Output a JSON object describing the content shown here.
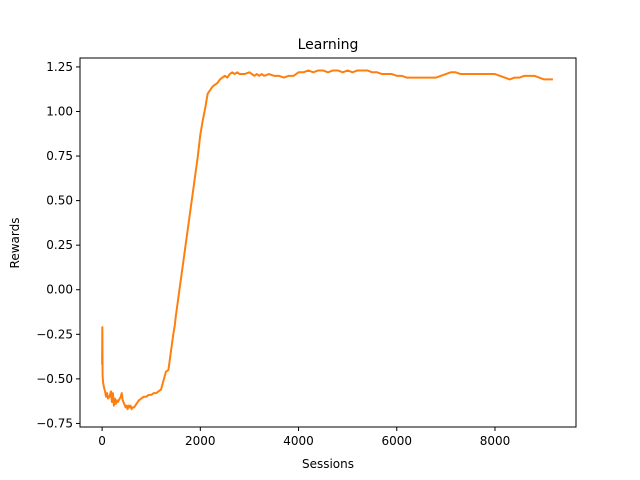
{
  "chart_data": {
    "type": "line",
    "title": "Learning",
    "xlabel": "Sessions",
    "ylabel": "Rewards",
    "xlim": [
      -450,
      9650
    ],
    "ylim": [
      -0.77,
      1.3
    ],
    "grid": false,
    "legend": "none",
    "x_ticks": [
      0,
      2000,
      4000,
      6000,
      8000
    ],
    "x_tick_labels": [
      "0",
      "2000",
      "4000",
      "6000",
      "8000"
    ],
    "y_ticks": [
      -0.75,
      -0.5,
      -0.25,
      0.0,
      0.25,
      0.5,
      0.75,
      1.0,
      1.25
    ],
    "y_tick_labels": [
      "−0.75",
      "−0.50",
      "−0.25",
      "0.00",
      "0.25",
      "0.50",
      "0.75",
      "1.00",
      "1.25"
    ],
    "colors": {
      "line": "#ff7f0e",
      "axes": "#000000"
    },
    "series": [
      {
        "x": [
          0,
          5,
          10,
          20,
          40,
          60,
          80,
          100,
          120,
          150,
          180,
          200,
          220,
          240,
          260,
          280,
          300,
          320,
          340,
          360,
          380,
          400,
          420,
          450,
          480,
          500,
          520,
          540,
          560,
          580,
          600,
          620,
          650,
          700,
          750,
          800,
          850,
          900,
          950,
          1000,
          1050,
          1100,
          1150,
          1200,
          1250,
          1300,
          1350,
          1400,
          1450,
          1480,
          1500,
          1550,
          1600,
          1650,
          1700,
          1750,
          1800,
          1850,
          1900,
          1950,
          2000,
          2050,
          2100,
          2150,
          2200,
          2250,
          2300,
          2350,
          2400,
          2450,
          2500,
          2550,
          2600,
          2650,
          2700,
          2750,
          2800,
          2900,
          3000,
          3100,
          3150,
          3200,
          3250,
          3300,
          3400,
          3500,
          3600,
          3700,
          3800,
          3900,
          4000,
          4100,
          4200,
          4300,
          4400,
          4500,
          4600,
          4700,
          4800,
          4900,
          5000,
          5100,
          5200,
          5300,
          5400,
          5500,
          5600,
          5700,
          5800,
          5900,
          6000,
          6100,
          6200,
          6300,
          6400,
          6500,
          6600,
          6700,
          6800,
          6900,
          7000,
          7100,
          7200,
          7300,
          7400,
          7500,
          7600,
          7700,
          7800,
          7900,
          8000,
          8100,
          8200,
          8300,
          8400,
          8500,
          8600,
          8700,
          8800,
          8900,
          9000,
          9100,
          9180
        ],
        "y": [
          -0.42,
          -0.21,
          -0.48,
          -0.52,
          -0.55,
          -0.57,
          -0.6,
          -0.58,
          -0.61,
          -0.6,
          -0.57,
          -0.63,
          -0.58,
          -0.65,
          -0.61,
          -0.64,
          -0.62,
          -0.63,
          -0.62,
          -0.61,
          -0.6,
          -0.58,
          -0.62,
          -0.64,
          -0.66,
          -0.65,
          -0.67,
          -0.65,
          -0.66,
          -0.65,
          -0.67,
          -0.66,
          -0.66,
          -0.64,
          -0.62,
          -0.61,
          -0.6,
          -0.6,
          -0.59,
          -0.59,
          -0.58,
          -0.58,
          -0.57,
          -0.56,
          -0.51,
          -0.46,
          -0.45,
          -0.35,
          -0.25,
          -0.2,
          -0.15,
          -0.05,
          0.05,
          0.15,
          0.25,
          0.35,
          0.45,
          0.55,
          0.65,
          0.75,
          0.87,
          0.95,
          1.02,
          1.1,
          1.12,
          1.14,
          1.15,
          1.16,
          1.18,
          1.19,
          1.2,
          1.19,
          1.21,
          1.22,
          1.21,
          1.22,
          1.21,
          1.21,
          1.22,
          1.2,
          1.21,
          1.2,
          1.21,
          1.2,
          1.21,
          1.2,
          1.2,
          1.19,
          1.2,
          1.2,
          1.22,
          1.22,
          1.23,
          1.22,
          1.23,
          1.23,
          1.22,
          1.23,
          1.23,
          1.22,
          1.23,
          1.22,
          1.23,
          1.23,
          1.23,
          1.22,
          1.22,
          1.21,
          1.21,
          1.21,
          1.2,
          1.2,
          1.19,
          1.19,
          1.19,
          1.19,
          1.19,
          1.19,
          1.19,
          1.2,
          1.21,
          1.22,
          1.22,
          1.21,
          1.21,
          1.21,
          1.21,
          1.21,
          1.21,
          1.21,
          1.21,
          1.2,
          1.19,
          1.18,
          1.19,
          1.19,
          1.2,
          1.2,
          1.2,
          1.19,
          1.18,
          1.18,
          1.18
        ]
      }
    ]
  }
}
